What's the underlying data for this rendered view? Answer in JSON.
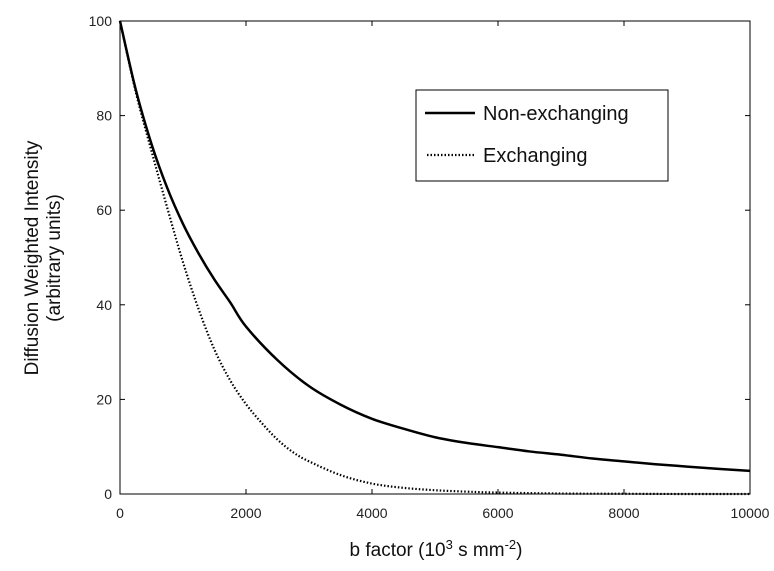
{
  "chart_data": {
    "type": "line",
    "xlabel": {
      "prefix": "b factor (10",
      "sup1": "3",
      "middle": " s mm",
      "sup2": "-2",
      "suffix": ")"
    },
    "ylabel": {
      "line1": "Diffusion Weighted Intensity",
      "line2": "(arbitrary units)"
    },
    "xlim": [
      0,
      10000
    ],
    "ylim": [
      0,
      100
    ],
    "xticks": [
      0,
      2000,
      4000,
      6000,
      8000,
      10000
    ],
    "xtick_labels": [
      "0",
      "2000",
      "4000",
      "6000",
      "8000",
      "10000"
    ],
    "yticks": [
      0,
      20,
      40,
      60,
      80,
      100
    ],
    "ytick_labels": [
      "0",
      "20",
      "40",
      "60",
      "80",
      "100"
    ],
    "grid": false,
    "legend_position": "top-right",
    "series": [
      {
        "name": "Non-exchanging",
        "style": "solid",
        "color": "#000000",
        "x": [
          0,
          250,
          500,
          750,
          1000,
          1250,
          1500,
          1750,
          2000,
          2500,
          3000,
          3500,
          4000,
          4500,
          5000,
          5500,
          6000,
          6500,
          7000,
          7500,
          8000,
          8500,
          9000,
          9500,
          10000
        ],
        "y": [
          100,
          85.5,
          74.0,
          64.7,
          57.1,
          50.8,
          45.3,
          40.5,
          35.4,
          28.3,
          22.8,
          18.9,
          15.9,
          13.8,
          12.0,
          10.8,
          9.9,
          9.0,
          8.3,
          7.5,
          6.9,
          6.3,
          5.8,
          5.3,
          4.9
        ]
      },
      {
        "name": "Exchanging",
        "style": "dotted",
        "color": "#000000",
        "x": [
          0,
          250,
          500,
          750,
          1000,
          1250,
          1500,
          1750,
          2000,
          2250,
          2500,
          2750,
          3000,
          3500,
          4000,
          4500,
          5000,
          5500,
          6000,
          7000,
          8000,
          9000,
          10000
        ],
        "y": [
          100,
          85.0,
          72.5,
          60.5,
          49.0,
          39.0,
          30.5,
          24.0,
          19.0,
          15.0,
          11.5,
          8.8,
          6.9,
          4.0,
          2.2,
          1.3,
          0.8,
          0.5,
          0.3,
          0.1,
          0.05,
          0.0,
          0.0
        ]
      }
    ]
  }
}
